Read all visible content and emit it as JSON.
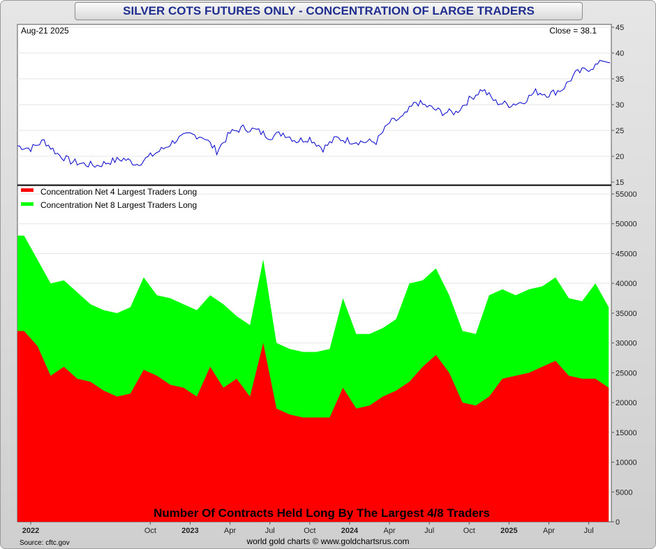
{
  "title": "SILVER COTS FUTURES ONLY - CONCENTRATION OF LARGE TRADERS",
  "price_panel": {
    "date_label": "Aug-21  2025",
    "close_label": "Close = 38.1"
  },
  "volume_panel": {
    "overlay_text": "Number Of Contracts Held Long By The Largest 4/8 Traders"
  },
  "footer": {
    "source": "Source: cftc.gov",
    "credit": "world gold charts © www.goldchartsrus.com"
  },
  "colors": {
    "price_line": "#0000cc",
    "net4": "#ff0000",
    "net8": "#00ff00",
    "title_text": "#1f2e8f"
  },
  "chart_data": [
    {
      "type": "line",
      "title": "",
      "ylim": [
        15,
        45
      ],
      "yticks": [
        "15",
        "20",
        "25",
        "30",
        "35",
        "40",
        "45"
      ],
      "grid": true,
      "x": [
        "2021-12",
        "2022-01",
        "2022-02",
        "2022-03",
        "2022-04",
        "2022-05",
        "2022-06",
        "2022-07",
        "2022-08",
        "2022-09",
        "2022-10",
        "2022-11",
        "2022-12",
        "2023-01",
        "2023-02",
        "2023-03",
        "2023-04",
        "2023-05",
        "2023-06",
        "2023-07",
        "2023-08",
        "2023-09",
        "2023-10",
        "2023-11",
        "2023-12",
        "2024-01",
        "2024-02",
        "2024-03",
        "2024-04",
        "2024-05",
        "2024-06",
        "2024-07",
        "2024-08",
        "2024-09",
        "2024-10",
        "2024-11",
        "2024-12",
        "2025-01",
        "2025-02",
        "2025-03",
        "2025-04",
        "2025-05",
        "2025-06",
        "2025-07",
        "2025-08"
      ],
      "series": [
        {
          "values": [
            22.0,
            21.5,
            23.0,
            20.5,
            19.0,
            18.5,
            18.2,
            19.0,
            19.5,
            18.5,
            20.0,
            21.5,
            23.3,
            24.2,
            23.8,
            21.0,
            24.5,
            25.5,
            25.0,
            23.8,
            24.5,
            23.0,
            23.5,
            21.5,
            23.5,
            23.0,
            22.8,
            22.8,
            26.5,
            27.5,
            30.5,
            29.5,
            28.5,
            28.5,
            31.0,
            33.0,
            30.5,
            30.0,
            30.5,
            32.5,
            32.0,
            33.0,
            36.0,
            37.0,
            38.1
          ]
        }
      ]
    },
    {
      "type": "area",
      "ylim": [
        0,
        55000
      ],
      "yticks": [
        "0",
        "5000",
        "10000",
        "15000",
        "20000",
        "25000",
        "30000",
        "35000",
        "40000",
        "45000",
        "50000",
        "55000"
      ],
      "grid": true,
      "legend": "top-left",
      "xticks": [
        "2022",
        "Oct",
        "2023",
        "Apr",
        "Jul",
        "Oct",
        "2024",
        "Apr",
        "Jul",
        "Oct",
        "2025",
        "Apr",
        "Jul"
      ],
      "x": [
        "2021-12",
        "2022-01",
        "2022-02",
        "2022-03",
        "2022-04",
        "2022-05",
        "2022-06",
        "2022-07",
        "2022-08",
        "2022-09",
        "2022-10",
        "2022-11",
        "2022-12",
        "2023-01",
        "2023-02",
        "2023-03",
        "2023-04",
        "2023-05",
        "2023-06",
        "2023-07",
        "2023-08",
        "2023-09",
        "2023-10",
        "2023-11",
        "2023-12",
        "2024-01",
        "2024-02",
        "2024-03",
        "2024-04",
        "2024-05",
        "2024-06",
        "2024-07",
        "2024-08",
        "2024-09",
        "2024-10",
        "2024-11",
        "2024-12",
        "2025-01",
        "2025-02",
        "2025-03",
        "2025-04",
        "2025-05",
        "2025-06",
        "2025-07",
        "2025-08"
      ],
      "series": [
        {
          "name": "Concentration Net 4 Largest Traders Long",
          "values": [
            32000,
            29500,
            24500,
            26000,
            24000,
            23500,
            22000,
            21000,
            21500,
            25500,
            24500,
            23000,
            22500,
            21000,
            26000,
            22500,
            24000,
            21000,
            30000,
            19000,
            18000,
            17500,
            17500,
            17500,
            22500,
            19000,
            19500,
            21000,
            22000,
            23500,
            26000,
            28000,
            25000,
            20000,
            19500,
            21000,
            24000,
            24500,
            25000,
            26000,
            27000,
            24500,
            24000,
            24000,
            22500
          ]
        },
        {
          "name": "Concentration Net 8 Largest Traders Long",
          "values": [
            48000,
            44000,
            40000,
            40500,
            38500,
            36500,
            35500,
            35000,
            36000,
            41000,
            38000,
            37500,
            36500,
            35500,
            38000,
            36500,
            34500,
            33000,
            44000,
            30000,
            29000,
            28500,
            28500,
            29000,
            37500,
            31500,
            31500,
            32500,
            34000,
            40000,
            40500,
            42500,
            38000,
            32000,
            31500,
            38000,
            39000,
            38000,
            39000,
            39500,
            41000,
            37500,
            37000,
            40000,
            36000
          ]
        }
      ]
    }
  ]
}
